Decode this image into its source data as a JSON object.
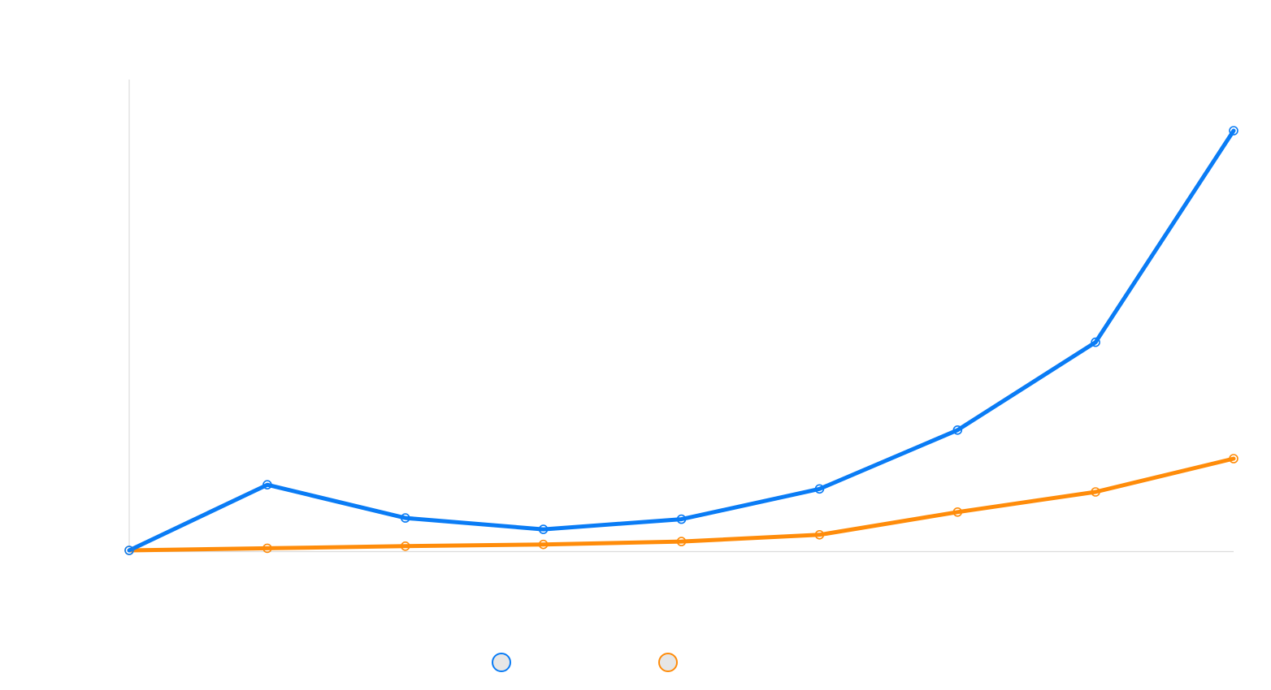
{
  "chart_data": {
    "type": "line",
    "title": "",
    "xlabel": "",
    "ylabel": "",
    "x": [
      0,
      1,
      2,
      3,
      4,
      5,
      6,
      7,
      8
    ],
    "ylim": [
      0,
      100
    ],
    "grid": false,
    "legend_placement": "bottom-center",
    "series": [
      {
        "name": "",
        "color": "#0a7cf5",
        "values": [
          0.2,
          15.8,
          7.9,
          5.2,
          7.6,
          14.8,
          28.8,
          49.7,
          100
        ]
      },
      {
        "name": "",
        "color": "#ff8c0a",
        "values": [
          0.2,
          0.7,
          1.2,
          1.6,
          2.3,
          3.9,
          9.3,
          14.1,
          22.0
        ]
      }
    ]
  },
  "style": {
    "axis_color": "#dcdcdc",
    "legend_fill": "#e6e6e6"
  }
}
